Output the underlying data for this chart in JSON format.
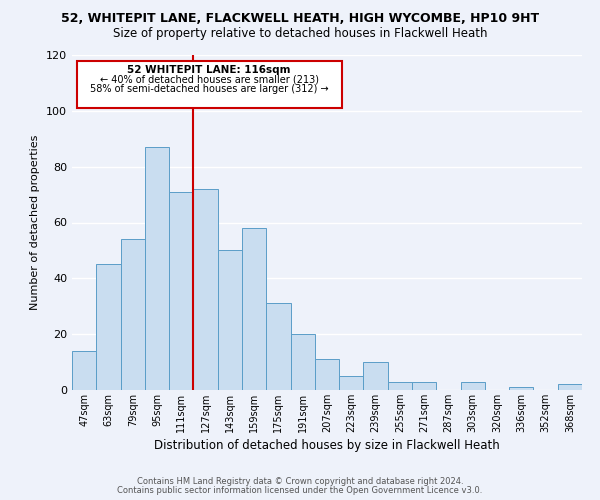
{
  "title": "52, WHITEPIT LANE, FLACKWELL HEATH, HIGH WYCOMBE, HP10 9HT",
  "subtitle": "Size of property relative to detached houses in Flackwell Heath",
  "xlabel": "Distribution of detached houses by size in Flackwell Heath",
  "ylabel": "Number of detached properties",
  "categories": [
    "47sqm",
    "63sqm",
    "79sqm",
    "95sqm",
    "111sqm",
    "127sqm",
    "143sqm",
    "159sqm",
    "175sqm",
    "191sqm",
    "207sqm",
    "223sqm",
    "239sqm",
    "255sqm",
    "271sqm",
    "287sqm",
    "303sqm",
    "320sqm",
    "336sqm",
    "352sqm",
    "368sqm"
  ],
  "values": [
    14,
    45,
    54,
    87,
    71,
    72,
    50,
    58,
    31,
    20,
    11,
    5,
    10,
    3,
    3,
    0,
    3,
    0,
    1,
    0,
    2
  ],
  "bar_color": "#c9ddf0",
  "bar_edge_color": "#5a9dc8",
  "vline_x": 4.5,
  "vline_label": "52 WHITEPIT LANE: 116sqm",
  "annotation_line1": "← 40% of detached houses are smaller (213)",
  "annotation_line2": "58% of semi-detached houses are larger (312) →",
  "box_color": "#cc0000",
  "ylim": [
    0,
    120
  ],
  "yticks": [
    0,
    20,
    40,
    60,
    80,
    100,
    120
  ],
  "footer1": "Contains HM Land Registry data © Crown copyright and database right 2024.",
  "footer2": "Contains public sector information licensed under the Open Government Licence v3.0.",
  "bg_color": "#eef2fa",
  "grid_color": "#ffffff",
  "bar_width": 1.0,
  "title_fontsize": 9,
  "subtitle_fontsize": 8.5
}
